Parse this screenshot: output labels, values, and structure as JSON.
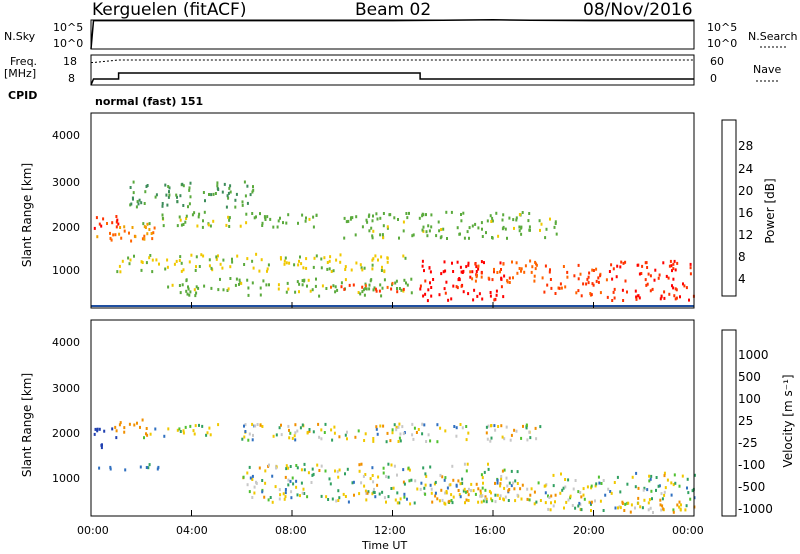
{
  "header": {
    "station": "Kerguelen (fitACF)",
    "beam": "Beam 02",
    "date": "08/Nov/2016"
  },
  "top_panels": {
    "nsky_label": "N.Sky",
    "nsky_ticks": [
      "10^5",
      "10^0"
    ],
    "nsearch_label": "N.Search",
    "nsearch_ticks": [
      "10^5",
      "10^0"
    ],
    "freq_label": "Freq.",
    "freq_unit": "[MHz]",
    "freq_ticks": [
      "18",
      "8"
    ],
    "nave_label": "Nave",
    "nave_ticks": [
      "60",
      "0"
    ],
    "cpid_label": "CPID",
    "cpid_value": "normal (fast) 151"
  },
  "x_axis": {
    "label": "Time UT",
    "ticks": [
      "00:00",
      "04:00",
      "08:00",
      "12:00",
      "16:00",
      "20:00",
      "00:00"
    ]
  },
  "power_panel": {
    "ylabel": "Slant Range [km]",
    "yticks": [
      "4000",
      "3000",
      "2000",
      "1000"
    ],
    "colorbar_label": "Power [dB]",
    "colorbar_ticks": [
      "28",
      "24",
      "20",
      "16",
      "12",
      "8",
      "4"
    ]
  },
  "velocity_panel": {
    "ylabel": "Slant Range [km]",
    "yticks": [
      "4000",
      "3000",
      "2000",
      "1000"
    ],
    "colorbar_label": "Velocity [m s⁻¹]",
    "colorbar_ticks": [
      "1000",
      "500",
      "100",
      "25",
      "-25",
      "-100",
      "-500",
      "-1000"
    ]
  },
  "colors": {
    "power_scale": [
      "#0000ff",
      "#1f4fa0",
      "#3c8c5a",
      "#5aaa3c",
      "#f0c800",
      "#f0a000",
      "#ff6400",
      "#ff3200",
      "#ff0000"
    ],
    "velocity_scale": [
      "#2040b0",
      "#3070c0",
      "#30a060",
      "#50c030",
      "#c8c8c8",
      "#f0c800",
      "#f09000",
      "#ff5000",
      "#ff0000"
    ]
  },
  "chart_data": [
    {
      "type": "line",
      "title": "N.Sky / N.Search",
      "x": [
        0,
        0.1,
        4,
        8,
        12,
        14,
        16,
        17.5,
        20,
        24
      ],
      "series": [
        {
          "name": "N.Sky",
          "values": [
            1,
            80000,
            80000,
            80000,
            80000,
            90000,
            110000,
            90000,
            80000,
            80000
          ]
        }
      ],
      "ylim": [
        1,
        100000
      ]
    },
    {
      "type": "line",
      "title": "Freq. / Nave",
      "x": [
        0,
        0.1,
        1.1,
        1.1,
        13.1,
        13.1,
        24
      ],
      "series": [
        {
          "name": "Freq.",
          "values": [
            8,
            10,
            10,
            12,
            12,
            10,
            10
          ]
        },
        {
          "name": "Nave",
          "values": [
            45,
            45,
            50,
            50,
            50,
            50,
            50
          ]
        }
      ],
      "ylim": [
        8,
        18
      ]
    },
    {
      "type": "heatmap",
      "title": "Power [dB]",
      "xlabel": "Time UT",
      "ylabel": "Slant Range [km]",
      "xlim": [
        0,
        24
      ],
      "ylim": [
        200,
        4600
      ],
      "zlim": [
        0,
        30
      ],
      "regions": [
        {
          "t0": 0.2,
          "t1": 2.5,
          "r0": 1700,
          "r1": 2200,
          "power": 20
        },
        {
          "t0": 0.1,
          "t1": 1.2,
          "r0": 1900,
          "r1": 2300,
          "power": 26
        },
        {
          "t0": 2.0,
          "t1": 9.0,
          "r0": 2050,
          "r1": 2400,
          "power": 12
        },
        {
          "t0": 1.5,
          "t1": 6.5,
          "r0": 2500,
          "r1": 3100,
          "power": 10
        },
        {
          "t0": 1.0,
          "t1": 12.5,
          "r0": 1050,
          "r1": 1450,
          "power": 14
        },
        {
          "t0": 3.0,
          "t1": 13.0,
          "r0": 500,
          "r1": 900,
          "power": 12
        },
        {
          "t0": 9.5,
          "t1": 12.5,
          "r0": 600,
          "r1": 800,
          "power": 24
        },
        {
          "t0": 10.0,
          "t1": 18.5,
          "r0": 1800,
          "r1": 2400,
          "power": 12
        },
        {
          "t0": 13.0,
          "t1": 16.5,
          "r0": 400,
          "r1": 1300,
          "power": 28
        },
        {
          "t0": 15.0,
          "t1": 18.0,
          "r0": 800,
          "r1": 1300,
          "power": 22
        },
        {
          "t0": 18.0,
          "t1": 20.5,
          "r0": 500,
          "r1": 1200,
          "power": 24
        },
        {
          "t0": 20.5,
          "t1": 24.0,
          "r0": 400,
          "r1": 1300,
          "power": 26
        }
      ]
    },
    {
      "type": "heatmap",
      "title": "Velocity [m s^-1]",
      "xlabel": "Time UT",
      "ylabel": "Slant Range [km]",
      "xlim": [
        0,
        24
      ],
      "ylim": [
        200,
        4600
      ],
      "zlim": [
        -1000,
        1000
      ],
      "regions": [
        {
          "t0": 0.1,
          "t1": 1.0,
          "r0": 1700,
          "r1": 2200,
          "velocity": 800
        },
        {
          "t0": 0.8,
          "t1": 2.2,
          "r0": 2000,
          "r1": 2400,
          "velocity": -300
        },
        {
          "t0": 0.1,
          "t1": 2.7,
          "r0": 1250,
          "r1": 1400,
          "velocity": 100
        },
        {
          "t0": 2.0,
          "t1": 18.0,
          "r0": 1900,
          "r1": 2300,
          "velocity": 0
        },
        {
          "t0": 6.0,
          "t1": 17.0,
          "r0": 500,
          "r1": 1400,
          "velocity": 0
        },
        {
          "t0": 14.0,
          "t1": 18.5,
          "r0": 500,
          "r1": 1000,
          "velocity": -60
        },
        {
          "t0": 18.0,
          "t1": 24.0,
          "r0": 350,
          "r1": 1200,
          "velocity": 0
        },
        {
          "t0": 21.0,
          "t1": 23.5,
          "r0": 300,
          "r1": 550,
          "velocity": -100
        }
      ]
    }
  ]
}
